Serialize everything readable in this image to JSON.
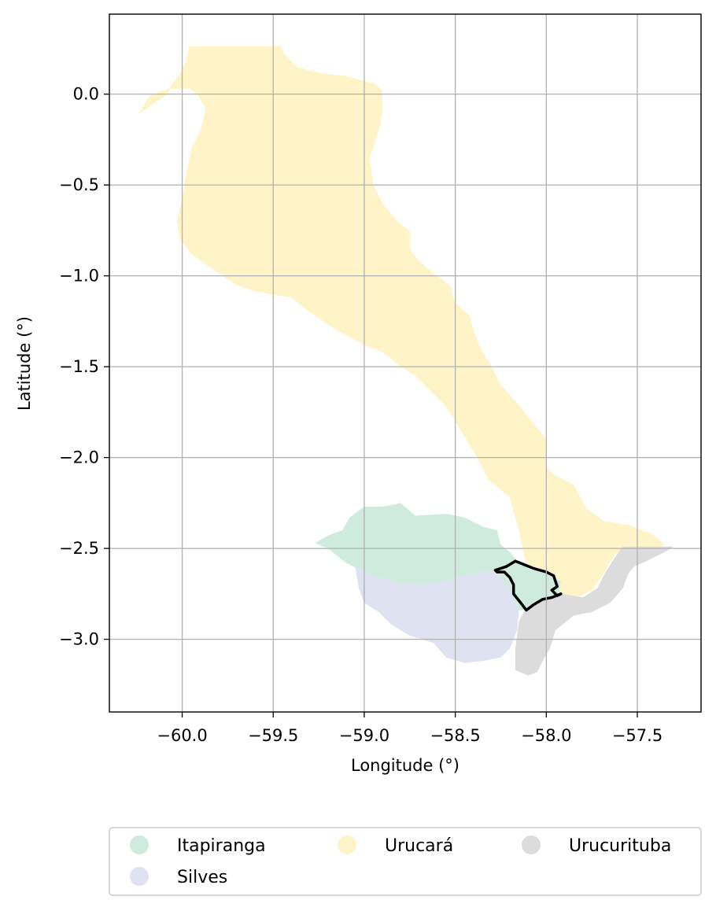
{
  "chart_data": {
    "type": "map",
    "xlabel": "Longitude (°)",
    "ylabel": "Latitude (°)",
    "xlim": [
      -60.4,
      -57.15
    ],
    "ylim": [
      -3.4,
      0.44
    ],
    "grid": true,
    "x_ticks": [
      {
        "value": -60.0,
        "label": "−60.0"
      },
      {
        "value": -59.5,
        "label": "−59.5"
      },
      {
        "value": -59.0,
        "label": "−59.0"
      },
      {
        "value": -58.5,
        "label": "−58.5"
      },
      {
        "value": -58.0,
        "label": "−58.0"
      },
      {
        "value": -57.5,
        "label": "−57.5"
      }
    ],
    "y_ticks": [
      {
        "value": 0.0,
        "label": "0.0"
      },
      {
        "value": -0.5,
        "label": "−0.5"
      },
      {
        "value": -1.0,
        "label": "−1.0"
      },
      {
        "value": -1.5,
        "label": "−1.5"
      },
      {
        "value": -2.0,
        "label": "−2.0"
      },
      {
        "value": -2.5,
        "label": "−2.5"
      },
      {
        "value": -3.0,
        "label": "−3.0"
      }
    ],
    "regions": [
      {
        "name": "Urucará",
        "color": "#fff4c8",
        "coords": [
          [
            -59.96,
            0.265
          ],
          [
            -59.46,
            0.265
          ],
          [
            -59.44,
            0.22
          ],
          [
            -59.37,
            0.15
          ],
          [
            -59.3,
            0.13
          ],
          [
            -59.2,
            0.11
          ],
          [
            -59.1,
            0.1
          ],
          [
            -59.03,
            0.08
          ],
          [
            -58.95,
            0.06
          ],
          [
            -58.9,
            0.02
          ],
          [
            -58.9,
            -0.1
          ],
          [
            -58.92,
            -0.2
          ],
          [
            -58.97,
            -0.35
          ],
          [
            -58.95,
            -0.5
          ],
          [
            -58.9,
            -0.6
          ],
          [
            -58.82,
            -0.7
          ],
          [
            -58.75,
            -0.75
          ],
          [
            -58.75,
            -0.85
          ],
          [
            -58.7,
            -0.92
          ],
          [
            -58.6,
            -1.0
          ],
          [
            -58.53,
            -1.05
          ],
          [
            -58.5,
            -1.15
          ],
          [
            -58.42,
            -1.22
          ],
          [
            -58.4,
            -1.3
          ],
          [
            -58.36,
            -1.4
          ],
          [
            -58.3,
            -1.5
          ],
          [
            -58.25,
            -1.6
          ],
          [
            -58.16,
            -1.7
          ],
          [
            -58.08,
            -1.8
          ],
          [
            -58.0,
            -1.9
          ],
          [
            -58.0,
            -2.05
          ],
          [
            -57.95,
            -2.1
          ],
          [
            -57.85,
            -2.15
          ],
          [
            -57.78,
            -2.28
          ],
          [
            -57.68,
            -2.35
          ],
          [
            -57.55,
            -2.37
          ],
          [
            -57.42,
            -2.42
          ],
          [
            -57.35,
            -2.48
          ],
          [
            -57.4,
            -2.5
          ],
          [
            -57.55,
            -2.51
          ],
          [
            -57.62,
            -2.53
          ],
          [
            -57.7,
            -2.66
          ],
          [
            -57.75,
            -2.73
          ],
          [
            -57.85,
            -2.78
          ],
          [
            -57.95,
            -2.75
          ],
          [
            -57.93,
            -2.7
          ],
          [
            -57.96,
            -2.66
          ],
          [
            -58.1,
            -2.6
          ],
          [
            -58.12,
            -2.55
          ],
          [
            -58.15,
            -2.4
          ],
          [
            -58.18,
            -2.3
          ],
          [
            -58.2,
            -2.22
          ],
          [
            -58.32,
            -2.12
          ],
          [
            -58.38,
            -2.0
          ],
          [
            -58.47,
            -1.85
          ],
          [
            -58.55,
            -1.72
          ],
          [
            -58.62,
            -1.65
          ],
          [
            -58.72,
            -1.55
          ],
          [
            -58.8,
            -1.5
          ],
          [
            -58.9,
            -1.42
          ],
          [
            -59.0,
            -1.38
          ],
          [
            -59.15,
            -1.3
          ],
          [
            -59.3,
            -1.2
          ],
          [
            -59.4,
            -1.12
          ],
          [
            -59.52,
            -1.1
          ],
          [
            -59.62,
            -1.08
          ],
          [
            -59.7,
            -1.05
          ],
          [
            -59.78,
            -1.0
          ],
          [
            -59.88,
            -0.93
          ],
          [
            -59.95,
            -0.88
          ],
          [
            -60.01,
            -0.8
          ],
          [
            -60.03,
            -0.7
          ],
          [
            -60.0,
            -0.58
          ],
          [
            -59.98,
            -0.45
          ],
          [
            -59.95,
            -0.3
          ],
          [
            -59.9,
            -0.2
          ],
          [
            -59.87,
            -0.08
          ],
          [
            -59.92,
            0.0
          ],
          [
            -59.96,
            0.03
          ],
          [
            -60.08,
            0.03
          ],
          [
            -60.18,
            -0.01
          ],
          [
            -60.24,
            -0.11
          ],
          [
            -60.14,
            -0.04
          ],
          [
            -60.08,
            0.0
          ],
          [
            -60.06,
            0.05
          ],
          [
            -60.02,
            0.1
          ],
          [
            -59.98,
            0.18
          ]
        ]
      },
      {
        "name": "Itapiranga",
        "color": "#ceebde",
        "coords": [
          [
            -59.27,
            -2.47
          ],
          [
            -59.2,
            -2.43
          ],
          [
            -59.12,
            -2.4
          ],
          [
            -59.08,
            -2.33
          ],
          [
            -59.0,
            -2.27
          ],
          [
            -58.9,
            -2.27
          ],
          [
            -58.8,
            -2.25
          ],
          [
            -58.72,
            -2.32
          ],
          [
            -58.55,
            -2.31
          ],
          [
            -58.45,
            -2.33
          ],
          [
            -58.35,
            -2.38
          ],
          [
            -58.27,
            -2.4
          ],
          [
            -58.25,
            -2.48
          ],
          [
            -58.2,
            -2.52
          ],
          [
            -58.15,
            -2.58
          ],
          [
            -58.08,
            -2.62
          ],
          [
            -58.01,
            -2.62
          ],
          [
            -57.97,
            -2.66
          ],
          [
            -57.92,
            -2.68
          ],
          [
            -57.93,
            -2.73
          ],
          [
            -57.91,
            -2.75
          ],
          [
            -58.0,
            -2.78
          ],
          [
            -58.08,
            -2.8
          ],
          [
            -58.11,
            -2.84
          ],
          [
            -58.15,
            -2.84
          ],
          [
            -58.18,
            -2.78
          ],
          [
            -58.2,
            -2.72
          ],
          [
            -58.25,
            -2.66
          ],
          [
            -58.3,
            -2.62
          ],
          [
            -58.45,
            -2.65
          ],
          [
            -58.55,
            -2.68
          ],
          [
            -58.65,
            -2.7
          ],
          [
            -58.8,
            -2.69
          ],
          [
            -58.95,
            -2.65
          ],
          [
            -59.1,
            -2.58
          ],
          [
            -59.2,
            -2.5
          ]
        ]
      },
      {
        "name": "Silves",
        "color": "#dfe3f1",
        "coords": [
          [
            -59.05,
            -2.6
          ],
          [
            -58.95,
            -2.65
          ],
          [
            -58.8,
            -2.69
          ],
          [
            -58.65,
            -2.7
          ],
          [
            -58.55,
            -2.68
          ],
          [
            -58.45,
            -2.65
          ],
          [
            -58.3,
            -2.62
          ],
          [
            -58.25,
            -2.66
          ],
          [
            -58.2,
            -2.72
          ],
          [
            -58.18,
            -2.78
          ],
          [
            -58.15,
            -2.84
          ],
          [
            -58.16,
            -2.95
          ],
          [
            -58.2,
            -3.05
          ],
          [
            -58.25,
            -3.1
          ],
          [
            -58.35,
            -3.12
          ],
          [
            -58.45,
            -3.13
          ],
          [
            -58.55,
            -3.1
          ],
          [
            -58.62,
            -3.02
          ],
          [
            -58.75,
            -2.98
          ],
          [
            -58.85,
            -2.92
          ],
          [
            -58.92,
            -2.85
          ],
          [
            -59.0,
            -2.8
          ],
          [
            -59.03,
            -2.72
          ]
        ]
      },
      {
        "name": "Urucurituba",
        "color": "#dcdcdc",
        "coords": [
          [
            -57.58,
            -2.49
          ],
          [
            -57.3,
            -2.49
          ],
          [
            -57.35,
            -2.52
          ],
          [
            -57.45,
            -2.57
          ],
          [
            -57.52,
            -2.6
          ],
          [
            -57.55,
            -2.64
          ],
          [
            -57.58,
            -2.72
          ],
          [
            -57.65,
            -2.8
          ],
          [
            -57.75,
            -2.85
          ],
          [
            -57.85,
            -2.87
          ],
          [
            -57.95,
            -2.95
          ],
          [
            -57.98,
            -3.05
          ],
          [
            -58.02,
            -3.12
          ],
          [
            -58.05,
            -3.18
          ],
          [
            -58.1,
            -3.2
          ],
          [
            -58.17,
            -3.17
          ],
          [
            -58.17,
            -3.05
          ],
          [
            -58.15,
            -2.9
          ],
          [
            -58.12,
            -2.84
          ],
          [
            -58.08,
            -2.8
          ],
          [
            -58.0,
            -2.78
          ],
          [
            -57.91,
            -2.75
          ],
          [
            -57.8,
            -2.77
          ],
          [
            -57.72,
            -2.72
          ],
          [
            -57.68,
            -2.64
          ],
          [
            -57.63,
            -2.56
          ]
        ]
      }
    ],
    "outline": {
      "color": "#000000",
      "coords": [
        [
          -58.28,
          -2.62
        ],
        [
          -58.22,
          -2.6
        ],
        [
          -58.17,
          -2.57
        ],
        [
          -58.12,
          -2.59
        ],
        [
          -58.07,
          -2.61
        ],
        [
          -58.0,
          -2.63
        ],
        [
          -57.96,
          -2.65
        ],
        [
          -57.95,
          -2.68
        ],
        [
          -57.94,
          -2.71
        ],
        [
          -57.97,
          -2.73
        ],
        [
          -57.94,
          -2.76
        ],
        [
          -57.92,
          -2.75
        ],
        [
          -57.97,
          -2.77
        ],
        [
          -58.02,
          -2.78
        ],
        [
          -58.07,
          -2.81
        ],
        [
          -58.11,
          -2.84
        ],
        [
          -58.14,
          -2.8
        ],
        [
          -58.18,
          -2.75
        ],
        [
          -58.18,
          -2.7
        ],
        [
          -58.2,
          -2.66
        ],
        [
          -58.23,
          -2.63
        ],
        [
          -58.27,
          -2.63
        ]
      ]
    },
    "legend": {
      "placement": "bottom",
      "entries": [
        {
          "label": "Itapiranga",
          "color": "#ceebde"
        },
        {
          "label": "Silves",
          "color": "#dfe3f1"
        },
        {
          "label": "Urucará",
          "color": "#fff4c8"
        },
        {
          "label": "Urucurituba",
          "color": "#dcdcdc"
        }
      ]
    }
  }
}
